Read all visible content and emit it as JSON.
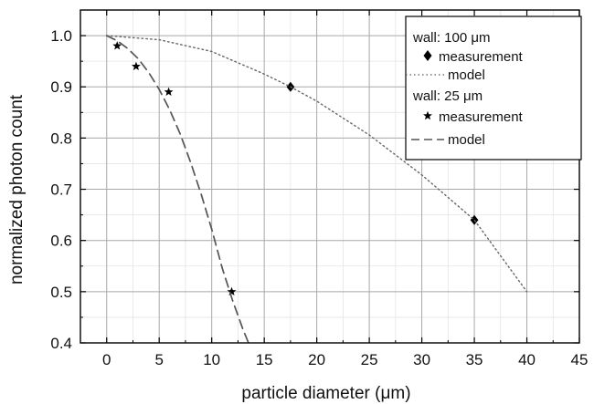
{
  "chart_data": {
    "type": "scatter",
    "title": "",
    "xlabel": "particle diameter (μm)",
    "ylabel": "normalized photon count",
    "xlim": [
      -2.5,
      45
    ],
    "ylim": [
      0.4,
      1.05
    ],
    "xticks": [
      0,
      5,
      10,
      15,
      20,
      25,
      30,
      35,
      40,
      45
    ],
    "yticks": [
      0.4,
      0.5,
      0.6,
      0.7,
      0.8,
      0.9,
      1.0
    ],
    "xtick_labels": [
      "0",
      "5",
      "10",
      "15",
      "20",
      "25",
      "30",
      "35",
      "40",
      "45"
    ],
    "ytick_labels": [
      "0.4",
      "0.5",
      "0.6",
      "0.7",
      "0.8",
      "0.9",
      "1.0"
    ],
    "grid": true,
    "legend_position": "top-right",
    "legend": {
      "group1_title": "wall: 100 μm",
      "group2_title": "wall: 25 μm",
      "measurement_label": "measurement",
      "model_label": "model"
    },
    "series": [
      {
        "name": "measurement",
        "group": "wall: 100 μm",
        "style": "markers",
        "marker": "diamond",
        "color": "#000000",
        "x": [
          17.5,
          35
        ],
        "y": [
          0.9,
          0.64
        ]
      },
      {
        "name": "model",
        "group": "wall: 100 μm",
        "style": "dotted-line",
        "color": "#666666",
        "x": [
          0,
          5,
          10,
          15,
          17.5,
          20,
          25,
          30,
          35,
          40
        ],
        "y": [
          1.0,
          0.992,
          0.969,
          0.925,
          0.9,
          0.872,
          0.806,
          0.728,
          0.64,
          0.5
        ]
      },
      {
        "name": "measurement",
        "group": "wall: 25 μm",
        "style": "markers",
        "marker": "star",
        "color": "#000000",
        "x": [
          1,
          2.8,
          5.9,
          11.9
        ],
        "y": [
          0.98,
          0.94,
          0.89,
          0.5
        ]
      },
      {
        "name": "model",
        "group": "wall: 25 μm",
        "style": "dashed-line",
        "color": "#555555",
        "x": [
          0,
          1,
          2,
          3,
          4,
          5,
          6,
          7,
          8,
          9,
          10,
          11,
          12,
          13,
          13.5
        ],
        "y": [
          1.0,
          0.99,
          0.975,
          0.955,
          0.928,
          0.895,
          0.855,
          0.808,
          0.752,
          0.69,
          0.622,
          0.546,
          0.482,
          0.425,
          0.4
        ]
      }
    ]
  }
}
